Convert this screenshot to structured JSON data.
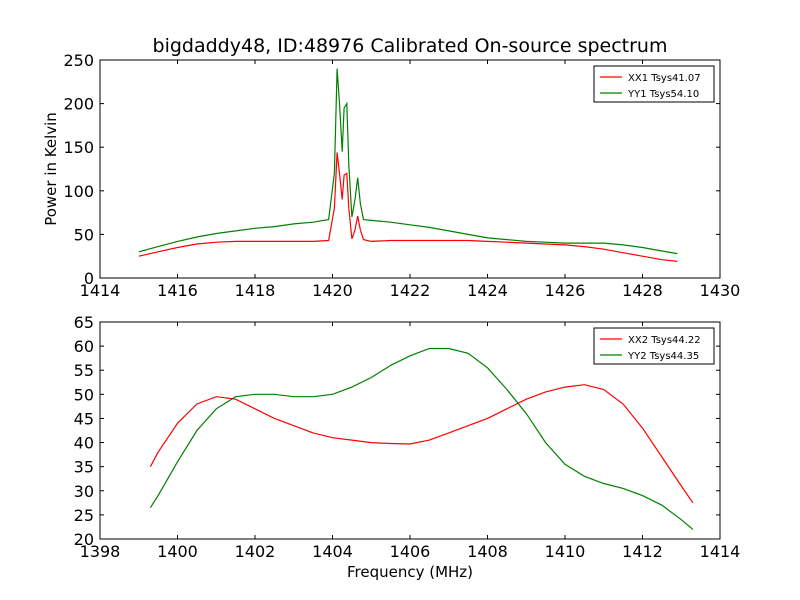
{
  "title": "bigdaddy48, ID:48976 Calibrated On-source spectrum",
  "chart_data": [
    {
      "type": "line",
      "title": "bigdaddy48, ID:48976 Calibrated On-source spectrum",
      "xlabel": "",
      "ylabel": "Power in Kelvin",
      "xlim": [
        1414,
        1430
      ],
      "ylim": [
        0,
        250
      ],
      "xticks": [
        "1414",
        "1416",
        "1418",
        "1420",
        "1422",
        "1424",
        "1426",
        "1428",
        "1430"
      ],
      "yticks": [
        "0",
        "50",
        "100",
        "150",
        "200",
        "250"
      ],
      "grid": false,
      "legend_position": "top-right",
      "series": [
        {
          "name": "XX1 Tsys41.07",
          "color": "#ff0000",
          "x": [
            1415.0,
            1415.5,
            1416.0,
            1416.5,
            1417.0,
            1417.5,
            1418.0,
            1418.5,
            1419.0,
            1419.5,
            1419.9,
            1420.05,
            1420.12,
            1420.18,
            1420.25,
            1420.3,
            1420.37,
            1420.42,
            1420.5,
            1420.58,
            1420.65,
            1420.72,
            1420.8,
            1421.0,
            1421.5,
            1422.0,
            1422.5,
            1423.0,
            1423.5,
            1424.0,
            1424.5,
            1425.0,
            1425.5,
            1426.0,
            1426.5,
            1427.0,
            1427.5,
            1428.0,
            1428.5,
            1428.9
          ],
          "values": [
            25,
            30,
            35,
            39,
            41,
            42,
            42,
            42,
            42,
            42,
            43,
            80,
            144,
            120,
            90,
            118,
            120,
            80,
            45,
            55,
            71,
            55,
            44,
            42,
            43,
            43,
            43,
            43,
            43,
            42,
            41,
            40,
            39,
            38,
            36,
            33,
            29,
            25,
            21,
            19
          ]
        },
        {
          "name": "YY1 Tsys54.10",
          "color": "#008000",
          "x": [
            1415.0,
            1415.5,
            1416.0,
            1416.5,
            1417.0,
            1417.5,
            1418.0,
            1418.5,
            1419.0,
            1419.5,
            1419.9,
            1420.05,
            1420.12,
            1420.18,
            1420.25,
            1420.3,
            1420.37,
            1420.42,
            1420.5,
            1420.58,
            1420.65,
            1420.72,
            1420.8,
            1421.0,
            1421.5,
            1422.0,
            1422.5,
            1423.0,
            1423.5,
            1424.0,
            1424.5,
            1425.0,
            1425.5,
            1426.0,
            1426.5,
            1427.0,
            1427.5,
            1428.0,
            1428.5,
            1428.9
          ],
          "values": [
            30,
            36,
            42,
            47,
            51,
            54,
            57,
            59,
            62,
            64,
            67,
            120,
            240,
            200,
            145,
            195,
            200,
            130,
            70,
            90,
            115,
            85,
            67,
            66,
            64,
            61,
            58,
            54,
            50,
            46,
            44,
            42,
            41,
            40,
            40,
            40,
            38,
            35,
            31,
            28
          ]
        }
      ]
    },
    {
      "type": "line",
      "title": "",
      "xlabel": "Frequency (MHz)",
      "ylabel": "",
      "xlim": [
        1398,
        1414
      ],
      "ylim": [
        20,
        65
      ],
      "xticks": [
        "1398",
        "1400",
        "1402",
        "1404",
        "1406",
        "1408",
        "1410",
        "1412",
        "1414"
      ],
      "yticks": [
        "20",
        "25",
        "30",
        "35",
        "40",
        "45",
        "50",
        "55",
        "60",
        "65"
      ],
      "grid": false,
      "legend_position": "top-right",
      "series": [
        {
          "name": "XX2 Tsys44.22",
          "color": "#ff0000",
          "x": [
            1399.3,
            1399.5,
            1400.0,
            1400.5,
            1401.0,
            1401.5,
            1402.0,
            1402.5,
            1403.0,
            1403.5,
            1404.0,
            1404.5,
            1405.0,
            1405.5,
            1406.0,
            1406.5,
            1407.0,
            1407.5,
            1408.0,
            1408.5,
            1409.0,
            1409.5,
            1410.0,
            1410.5,
            1411.0,
            1411.5,
            1412.0,
            1412.5,
            1413.0,
            1413.3
          ],
          "values": [
            35,
            38,
            44,
            48,
            49.5,
            49,
            47,
            45,
            43.5,
            42,
            41,
            40.5,
            40,
            39.8,
            39.7,
            40.5,
            42,
            43.5,
            45,
            47,
            49,
            50.5,
            51.5,
            52,
            51,
            48,
            43,
            37,
            31,
            27.5
          ]
        },
        {
          "name": "YY2 Tsys44.35",
          "color": "#008000",
          "x": [
            1399.3,
            1399.5,
            1400.0,
            1400.5,
            1401.0,
            1401.5,
            1402.0,
            1402.5,
            1403.0,
            1403.5,
            1404.0,
            1404.5,
            1405.0,
            1405.5,
            1406.0,
            1406.5,
            1407.0,
            1407.5,
            1408.0,
            1408.5,
            1409.0,
            1409.5,
            1410.0,
            1410.5,
            1411.0,
            1411.5,
            1412.0,
            1412.5,
            1413.0,
            1413.3
          ],
          "values": [
            26.5,
            29,
            36,
            42.5,
            47,
            49.5,
            50,
            50,
            49.5,
            49.5,
            50,
            51.5,
            53.5,
            56,
            58,
            59.5,
            59.5,
            58.5,
            55.5,
            51,
            46,
            40,
            35.5,
            33,
            31.5,
            30.5,
            29,
            27,
            24,
            22
          ]
        }
      ]
    }
  ]
}
